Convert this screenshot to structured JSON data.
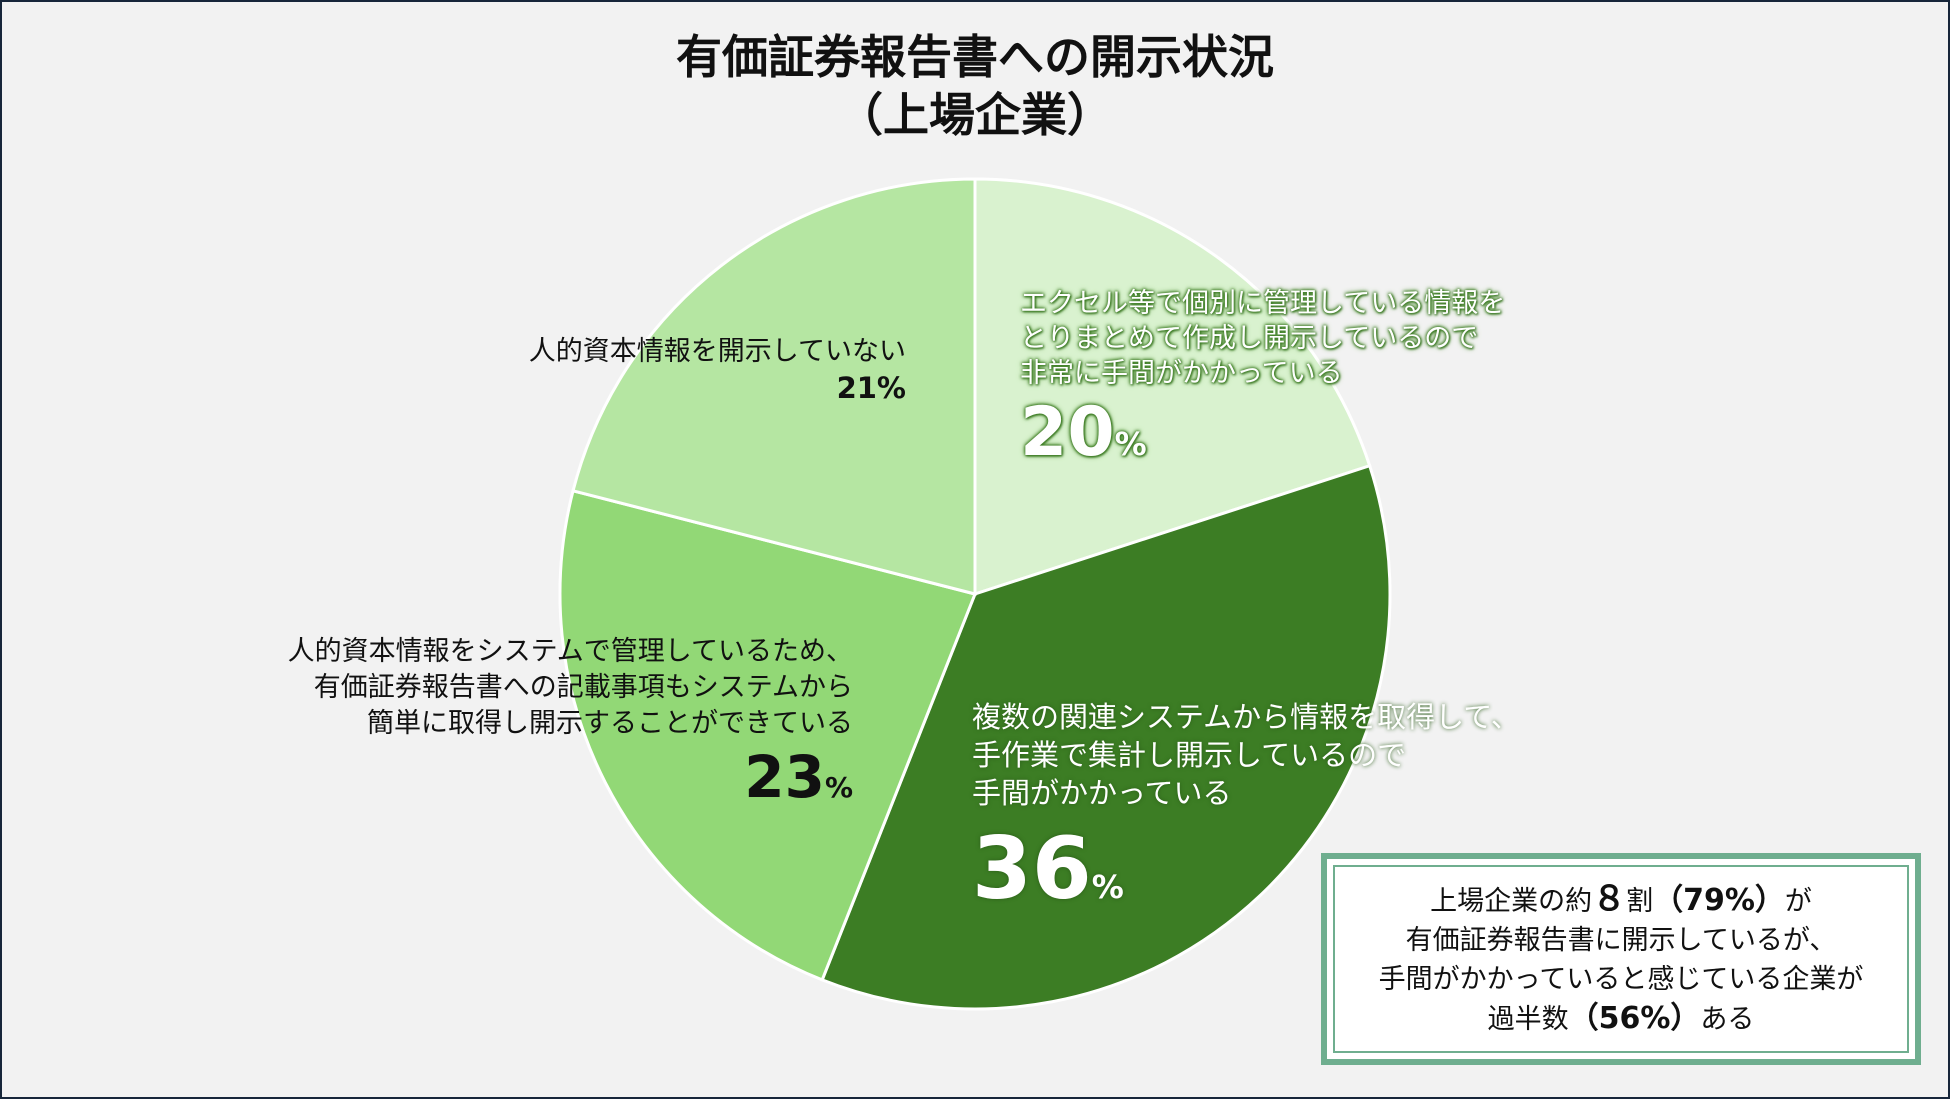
{
  "chart_data": {
    "type": "pie",
    "title": "有価証券報告書への開示状況",
    "subtitle": "（上場企業）",
    "slices": [
      {
        "label": [
          "エクセル等で個別に管理している情報を",
          "とりまとめて作成し開示しているので",
          "非常に手間がかかっている"
        ],
        "value": 20,
        "value_text": "20",
        "color": "#d9f2cf"
      },
      {
        "label": [
          "複数の関連システムから情報を取得して、",
          "手作業で集計し開示しているので",
          "手間がかかっている"
        ],
        "value": 36,
        "value_text": "36",
        "color": "#3c7d24"
      },
      {
        "label": [
          "人的資本情報をシステムで管理しているため、",
          "有価証券報告書への記載事項もシステムから",
          "簡単に取得し開示することができている"
        ],
        "value": 23,
        "value_text": "23",
        "color": "#92d876"
      },
      {
        "label": [
          "人的資本情報を開示していない"
        ],
        "value": 21,
        "value_text": "21%",
        "color": "#b5e6a2"
      }
    ],
    "unit": "%",
    "start_angle_deg": 0,
    "direction": "clockwise"
  },
  "summary": {
    "line1_a": "上場企業の約",
    "line1_num": "８",
    "line1_b": "割",
    "line1_pct": "（79%）",
    "line1_c": "が",
    "line2": "有価証券報告書に開示しているが、",
    "line3": "手間がかかっていると感じている企業が",
    "line4_a": "過半数",
    "line4_pct": "（56%）",
    "line4_b": "ある"
  }
}
